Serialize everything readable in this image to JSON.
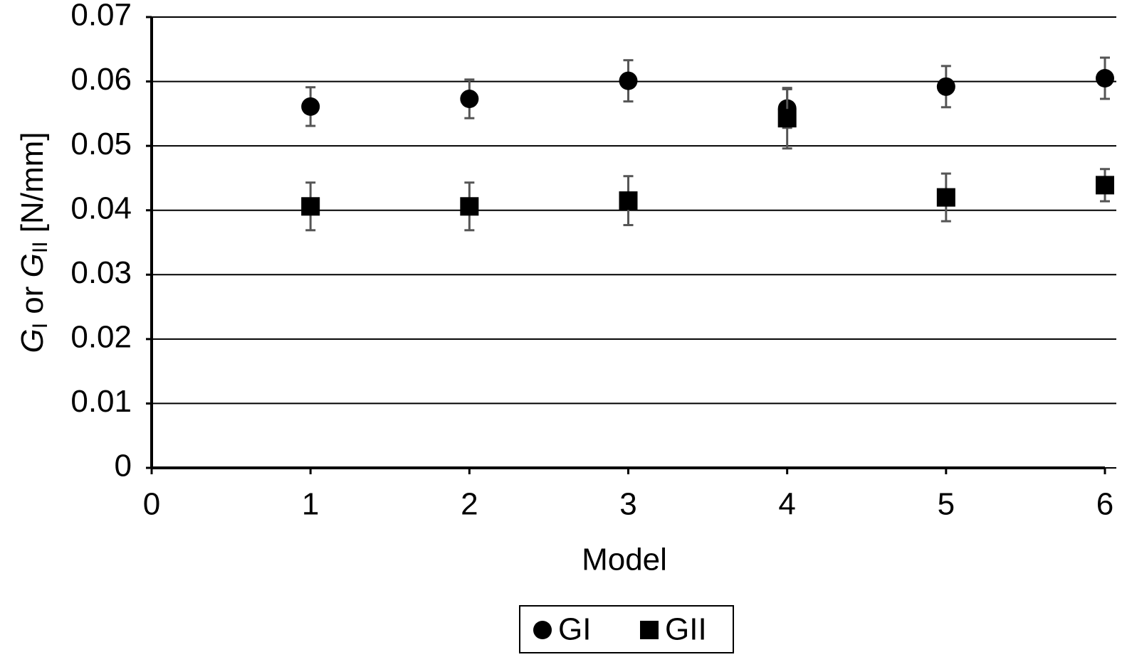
{
  "chart_data": {
    "type": "scatter",
    "x_label": "Model",
    "y_label_parts": [
      "G",
      "I",
      " or ",
      "G",
      "II",
      " [N/mm]"
    ],
    "xlim": [
      0,
      6
    ],
    "xticks": [
      0,
      1,
      2,
      3,
      4,
      5,
      6
    ],
    "ylim": [
      0,
      0.07
    ],
    "yticks": [
      0,
      0.01,
      0.02,
      0.03,
      0.04,
      0.05,
      0.06,
      0.07
    ],
    "grid": true,
    "legend": "bottom",
    "error_color": "#555555",
    "series": [
      {
        "name": "GI",
        "marker": "circle",
        "color": "#000000",
        "x": [
          1,
          2,
          3,
          4,
          5,
          6
        ],
        "values": [
          0.0561,
          0.0573,
          0.0601,
          0.0558,
          0.0592,
          0.0605
        ],
        "errors": [
          0.003,
          0.003,
          0.0032,
          0.003,
          0.0032,
          0.0032
        ]
      },
      {
        "name": "GII",
        "marker": "square",
        "color": "#000000",
        "x": [
          1,
          2,
          3,
          4,
          5,
          6
        ],
        "values": [
          0.0406,
          0.0406,
          0.0415,
          0.0543,
          0.042,
          0.0439
        ],
        "errors": [
          0.0037,
          0.0037,
          0.0038,
          0.0047,
          0.0037,
          0.0025
        ]
      }
    ]
  }
}
